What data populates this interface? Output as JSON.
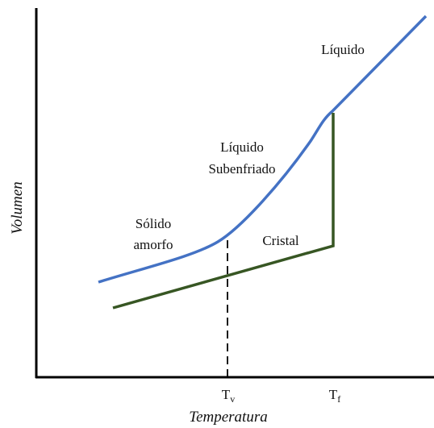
{
  "axes": {
    "x_label": "Temperatura",
    "y_label": "Volumen"
  },
  "regions": {
    "liquid": "Líquido",
    "supercooled": [
      "Líquido",
      "Subenfriado"
    ],
    "amorphous": [
      "Sólido",
      "amorfo"
    ],
    "crystal": "Cristal"
  },
  "ticks": [
    {
      "main": "T",
      "sub": "v"
    },
    {
      "main": "T",
      "sub": "f"
    }
  ]
}
